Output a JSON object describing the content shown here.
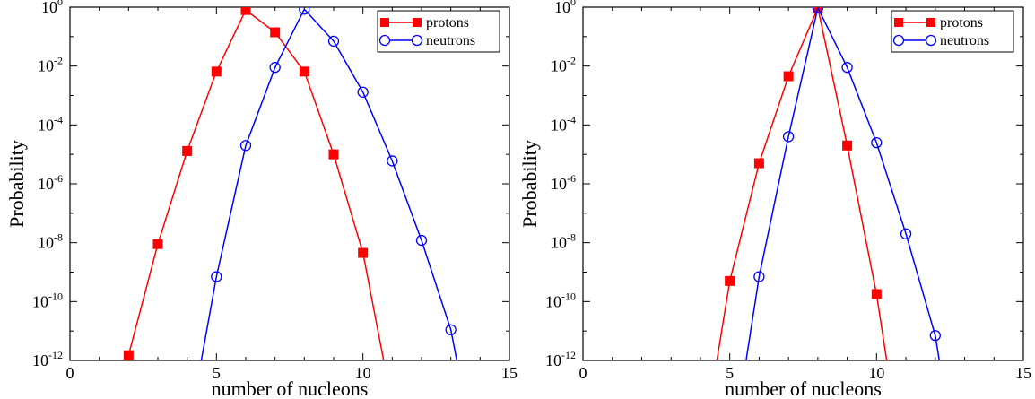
{
  "chart_data": [
    {
      "type": "line",
      "xlabel": "number of nucleons",
      "ylabel": "Probability",
      "xlim": [
        0,
        15
      ],
      "ylim": [
        1e-12,
        1
      ],
      "yscale": "log",
      "x_ticks": [
        "0",
        "5",
        "10",
        "15"
      ],
      "y_tick_base": "10",
      "y_tick_exponents": [
        "-12",
        "-10",
        "-8",
        "-6",
        "-4",
        "-2",
        "0"
      ],
      "grid": false,
      "legend": "top-right",
      "series": [
        {
          "name": "protons",
          "color": "#ff0000",
          "marker": "filled-square",
          "x": [
            2,
            3,
            4,
            5,
            6,
            7,
            8,
            9,
            10
          ],
          "y": [
            1.5e-12,
            9e-09,
            1.3e-05,
            0.0065,
            0.8,
            0.14,
            0.0065,
            1e-05,
            4.5e-09
          ],
          "line_extends_to": {
            "left": [
              1.6,
              1e-13
            ],
            "right": [
              10.9,
              1e-13
            ]
          }
        },
        {
          "name": "neutrons",
          "color": "#0000ff",
          "marker": "open-circle",
          "x": [
            5,
            6,
            7,
            8,
            9,
            10,
            11,
            12,
            13
          ],
          "y": [
            7e-10,
            2e-05,
            0.009,
            0.85,
            0.07,
            0.0013,
            6e-06,
            1.2e-08,
            1.1e-11
          ],
          "line_extends_to": {
            "left": [
              4.3,
              1e-13
            ],
            "right": [
              13.4,
              1e-13
            ]
          }
        }
      ]
    },
    {
      "type": "line",
      "xlabel": "number of nucleons",
      "ylabel": "Probability",
      "xlim": [
        0,
        15
      ],
      "ylim": [
        1e-12,
        1
      ],
      "yscale": "log",
      "x_ticks": [
        "0",
        "5",
        "10",
        "15"
      ],
      "y_tick_base": "10",
      "y_tick_exponents": [
        "-12",
        "-10",
        "-8",
        "-6",
        "-4",
        "-2",
        "0"
      ],
      "grid": false,
      "legend": "top-right",
      "series": [
        {
          "name": "protons",
          "color": "#ff0000",
          "marker": "filled-square",
          "x": [
            5,
            6,
            7,
            8,
            9,
            10
          ],
          "y": [
            5e-10,
            5e-06,
            0.0045,
            0.95,
            2e-05,
            1.8e-10
          ],
          "line_extends_to": {
            "left": [
              4.4,
              1e-13
            ],
            "right": [
              10.5,
              1e-13
            ]
          }
        },
        {
          "name": "neutrons",
          "color": "#0000ff",
          "marker": "open-circle",
          "x": [
            6,
            7,
            8,
            9,
            10,
            11,
            12
          ],
          "y": [
            7e-10,
            4e-05,
            0.95,
            0.009,
            2.5e-05,
            2e-08,
            7e-12
          ],
          "line_extends_to": {
            "left": [
              5.4,
              1e-13
            ],
            "right": [
              12.3,
              1e-13
            ]
          }
        }
      ]
    }
  ]
}
